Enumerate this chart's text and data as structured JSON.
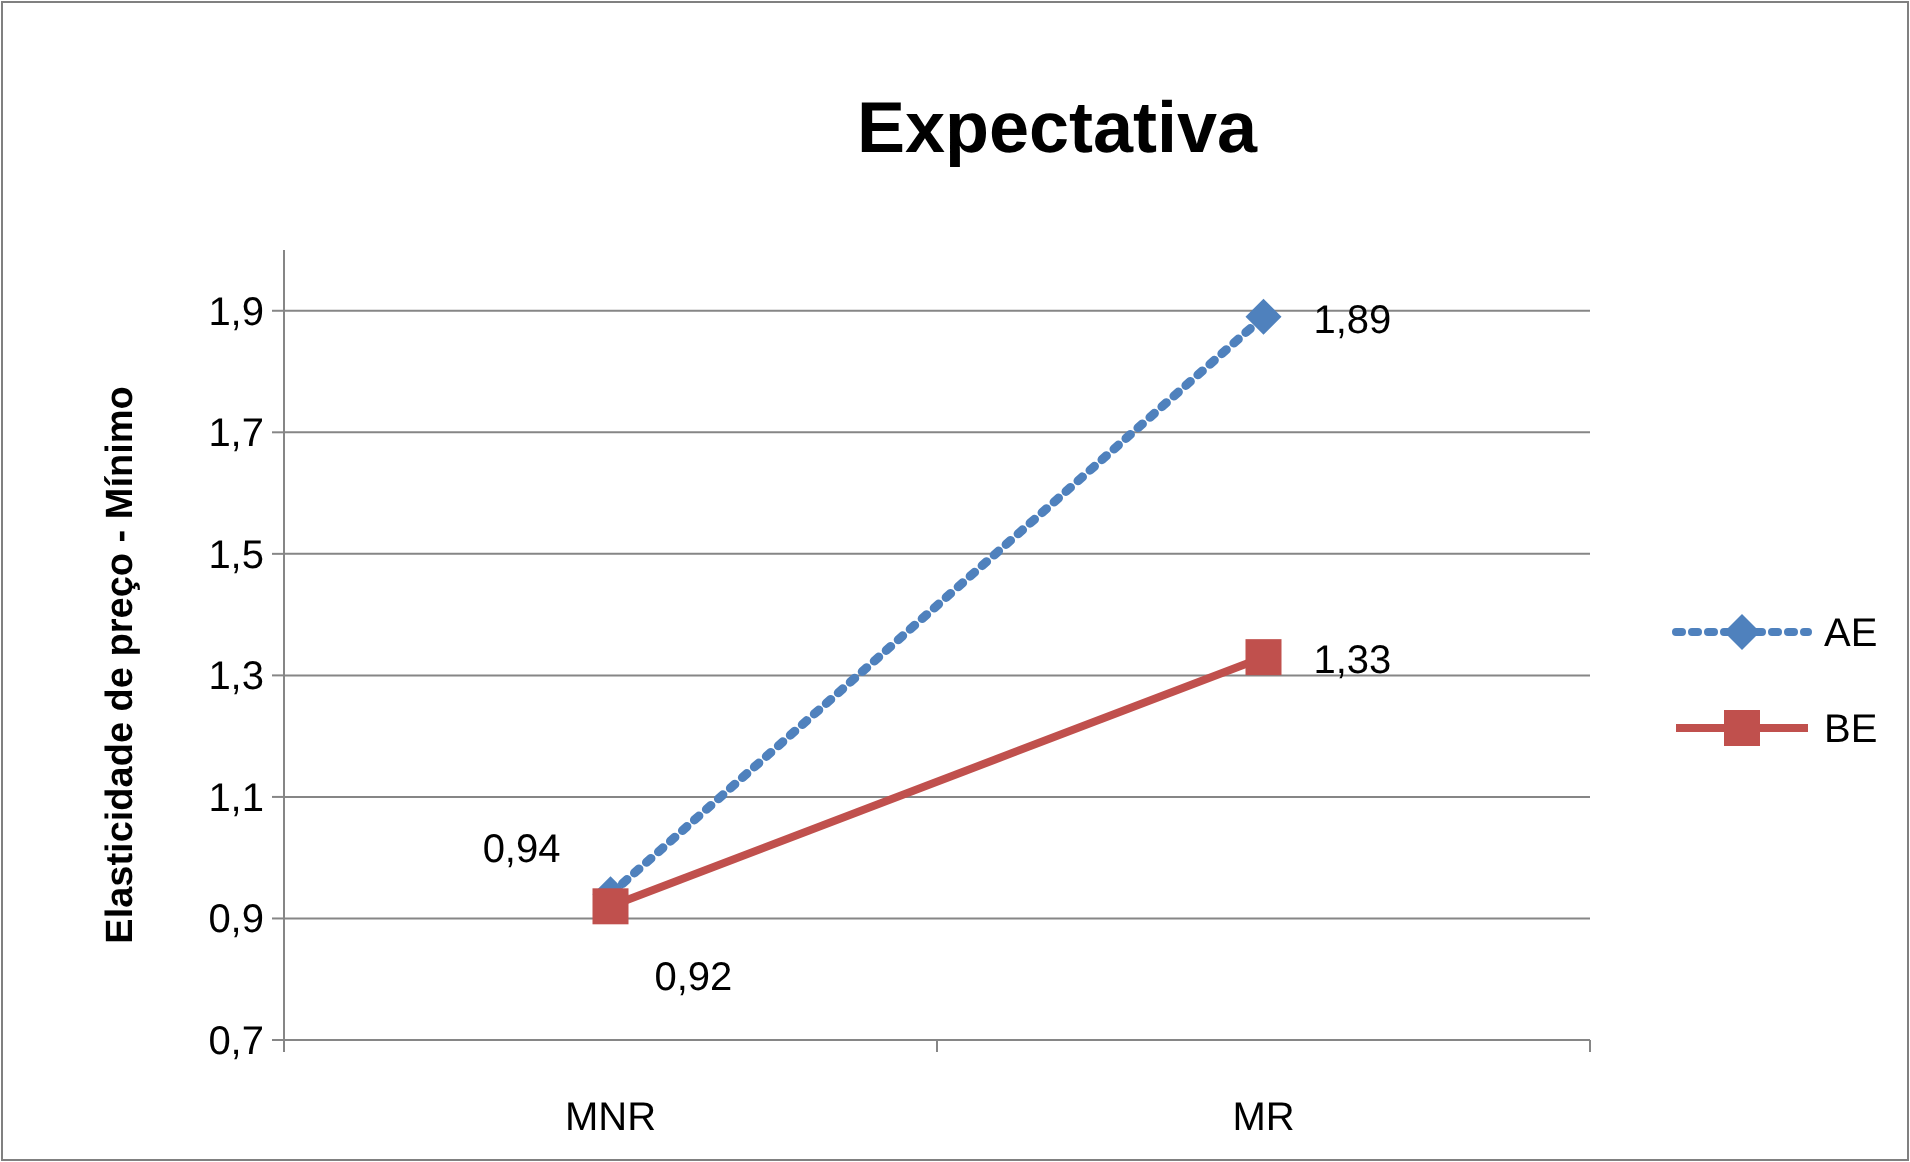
{
  "chart_data": {
    "type": "line",
    "title": "Expectativa",
    "ylabel": "Elasticidade de preço - Mínimo",
    "categories": [
      "MNR",
      "MR"
    ],
    "series": [
      {
        "name": "AE",
        "color": "#4f81bd",
        "values": [
          0.94,
          1.89
        ],
        "value_labels": [
          "0,94",
          "1,89"
        ],
        "marker": "diamond",
        "line_style": "dotted"
      },
      {
        "name": "BE",
        "color": "#c0504d",
        "values": [
          0.92,
          1.33
        ],
        "value_labels": [
          "0,92",
          "1,33"
        ],
        "marker": "square",
        "line_style": "solid"
      }
    ],
    "ylim": [
      0.7,
      2.0
    ],
    "yticks": [
      {
        "value": 0.7,
        "label": "0,7"
      },
      {
        "value": 0.9,
        "label": "0,9"
      },
      {
        "value": 1.1,
        "label": "1,1"
      },
      {
        "value": 1.3,
        "label": "1,3"
      },
      {
        "value": 1.5,
        "label": "1,5"
      },
      {
        "value": 1.7,
        "label": "1,7"
      },
      {
        "value": 1.9,
        "label": "1,9"
      }
    ],
    "grid": "y",
    "legend": "right"
  }
}
